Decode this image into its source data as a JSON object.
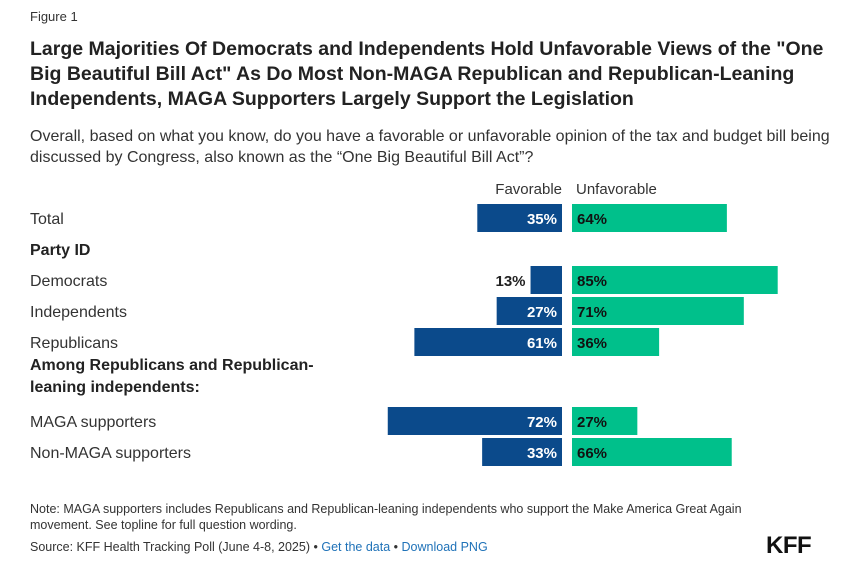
{
  "figure_label": "Figure 1",
  "source": {
    "prefix": "Source: KFF Health Tracking Poll (June 4-8, 2025)",
    "sep1": "•",
    "link1": "Get the data",
    "sep2": "•",
    "link2": "Download PNG"
  },
  "note": "Note: MAGA supporters includes Republicans and Republican-leaning independents who support the Make America Great Again movement. See topline for full question wording.",
  "logo": "KFF",
  "chart_data": {
    "type": "bar",
    "orientation": "diverging-horizontal",
    "title": "Large Majorities Of Democrats and Independents Hold Unfavorable Views of the \"One Big Beautiful Bill Act\" As Do Most Non-MAGA Republican and Republican-Leaning Independents, MAGA Supporters Largely Support the Legislation",
    "subtitle": "Overall, based on what you know, do you have a favorable or unfavorable opinion of the tax and budget bill being discussed by Congress, also known as the “One Big Beautiful Bill Act”?",
    "legend": [
      "Favorable",
      "Unfavorable"
    ],
    "colors": {
      "favorable": "#0b4a8b",
      "unfavorable": "#00c08b"
    },
    "rows": [
      {
        "kind": "bar",
        "label": "Total",
        "favorable": 35,
        "unfavorable": 64
      },
      {
        "kind": "group",
        "label": "Party ID"
      },
      {
        "kind": "bar",
        "label": "Democrats",
        "favorable": 13,
        "unfavorable": 85
      },
      {
        "kind": "bar",
        "label": "Independents",
        "favorable": 27,
        "unfavorable": 71
      },
      {
        "kind": "bar",
        "label": "Republicans",
        "favorable": 61,
        "unfavorable": 36
      },
      {
        "kind": "group",
        "label": "Among Republicans and Republican-leaning independents:",
        "lines": [
          "Among Republicans and Republican-",
          "leaning independents:"
        ]
      },
      {
        "kind": "bar",
        "label": "MAGA supporters",
        "favorable": 72,
        "unfavorable": 27
      },
      {
        "kind": "bar",
        "label": "Non-MAGA supporters",
        "favorable": 33,
        "unfavorable": 66
      }
    ],
    "value_suffix": "%"
  }
}
